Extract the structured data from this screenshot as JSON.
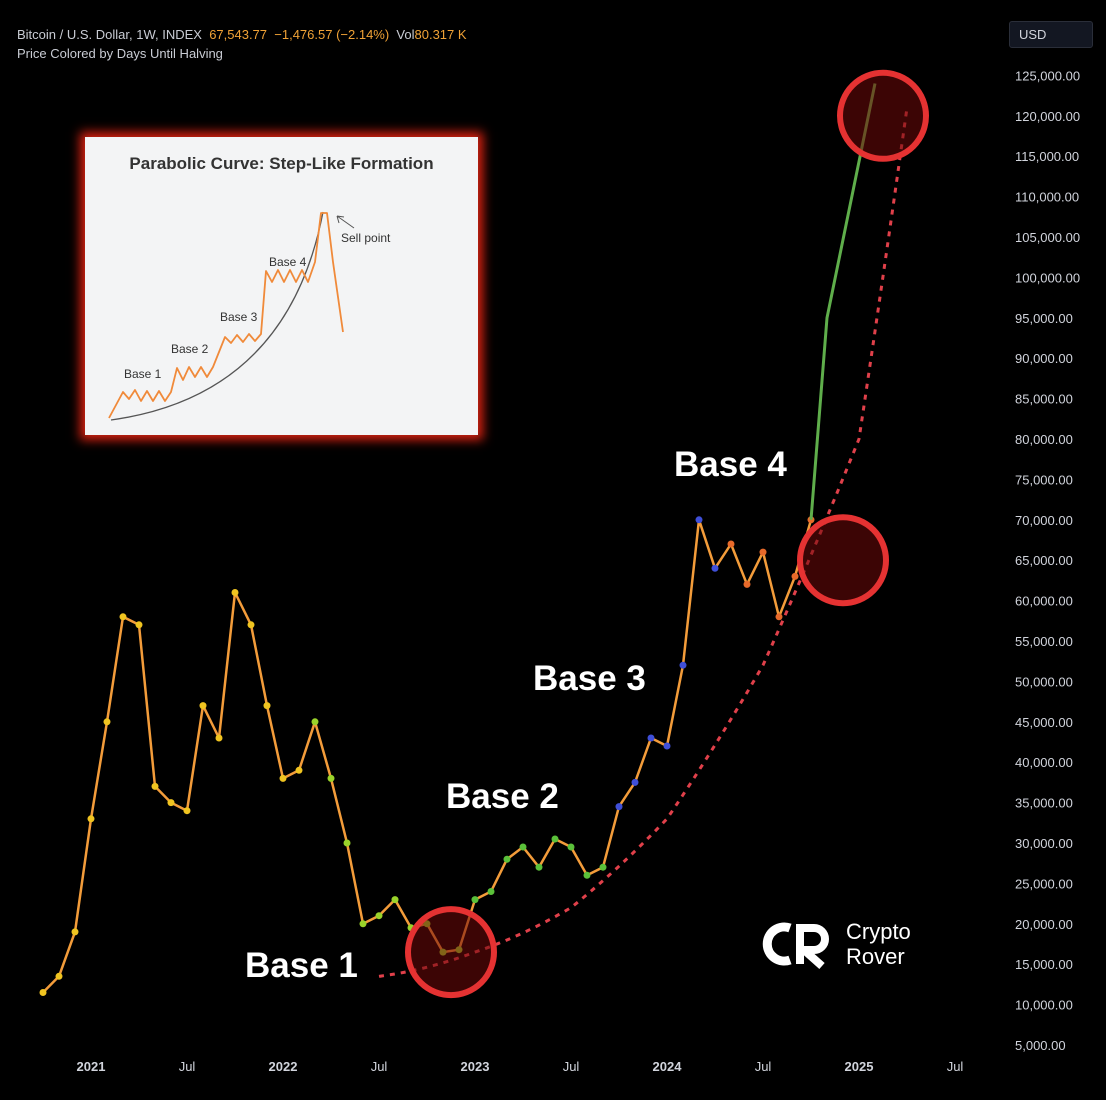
{
  "header": {
    "symbol": "Bitcoin / U.S. Dollar, 1W, INDEX",
    "price": "67,543.77",
    "change": "−1,476.57 (−2.14%)",
    "vol_label": "Vol",
    "vol_value": "80.317 K",
    "subtitle": "Price Colored by Days Until Halving"
  },
  "currency_button": "USD",
  "inset": {
    "title": "Parabolic Curve: Step-Like Formation",
    "labels": [
      "Base 1",
      "Base 2",
      "Base 3",
      "Base 4"
    ],
    "sell_label": "Sell point"
  },
  "annotations": [
    "Base 1",
    "Base 2",
    "Base 3",
    "Base 4"
  ],
  "logo": {
    "line1": "Crypto",
    "line2": "Rover"
  },
  "colors": {
    "background": "#000000",
    "price_line": "#f39c3a",
    "trend_curve": "#e0404a",
    "circle": "#e53232",
    "recent_bars": "#5fae4b"
  },
  "chart_data": {
    "type": "line",
    "title": "Bitcoin / U.S. Dollar, 1W, INDEX",
    "y_axis": {
      "ticks": [
        "5,000.00",
        "10,000.00",
        "15,000.00",
        "20,000.00",
        "25,000.00",
        "30,000.00",
        "35,000.00",
        "40,000.00",
        "45,000.00",
        "50,000.00",
        "55,000.00",
        "60,000.00",
        "65,000.00",
        "70,000.00",
        "75,000.00",
        "80,000.00",
        "85,000.00",
        "90,000.00",
        "95,000.00",
        "100,000.00",
        "105,000.00",
        "110,000.00",
        "115,000.00",
        "120,000.00",
        "125,000.00"
      ],
      "range": [
        5000,
        125000
      ],
      "position": "right"
    },
    "x_axis": {
      "ticks": [
        "2021",
        "Jul",
        "2022",
        "Jul",
        "2023",
        "Jul",
        "2024",
        "Jul",
        "2025",
        "Jul"
      ],
      "range": [
        "2020-09",
        "2025-09"
      ]
    },
    "grid": false,
    "series": [
      {
        "name": "Price",
        "x": [
          "2020-10",
          "2020-11",
          "2020-12",
          "2021-01",
          "2021-02",
          "2021-03",
          "2021-04",
          "2021-05",
          "2021-06",
          "2021-07",
          "2021-08",
          "2021-09",
          "2021-10",
          "2021-11",
          "2021-12",
          "2022-01",
          "2022-02",
          "2022-03",
          "2022-04",
          "2022-05",
          "2022-06",
          "2022-07",
          "2022-08",
          "2022-09",
          "2022-10",
          "2022-11",
          "2022-12",
          "2023-01",
          "2023-02",
          "2023-03",
          "2023-04",
          "2023-05",
          "2023-06",
          "2023-07",
          "2023-08",
          "2023-09",
          "2023-10",
          "2023-11",
          "2023-12",
          "2024-01",
          "2024-02",
          "2024-03",
          "2024-04",
          "2024-05",
          "2024-06",
          "2024-07",
          "2024-08",
          "2024-09",
          "2024-10",
          "2024-11"
        ],
        "y": [
          11500,
          13500,
          19000,
          33000,
          45000,
          58000,
          57000,
          37000,
          35000,
          34000,
          47000,
          43000,
          61000,
          57000,
          47000,
          38000,
          39000,
          45000,
          38000,
          30000,
          20000,
          21000,
          23000,
          19500,
          20000,
          16500,
          16800,
          23000,
          24000,
          28000,
          29500,
          27000,
          30500,
          29500,
          26000,
          27000,
          34500,
          37500,
          43000,
          42000,
          52000,
          70000,
          64000,
          67000,
          62000,
          66000,
          58000,
          63000,
          70000,
          95000
        ]
      },
      {
        "name": "Trend curve",
        "x": [
          "2022-07",
          "2023-01",
          "2023-07",
          "2024-01",
          "2024-07",
          "2025-01",
          "2025-04"
        ],
        "y": [
          13500,
          16500,
          22000,
          33000,
          52000,
          80000,
          121000
        ]
      }
    ],
    "annotations": [
      "Base 1",
      "Base 2",
      "Base 3",
      "Base 4"
    ]
  }
}
